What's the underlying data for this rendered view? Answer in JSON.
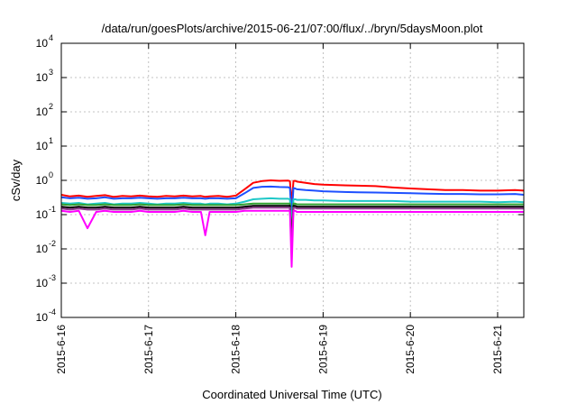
{
  "chart_data": {
    "type": "line",
    "title": "/data/run/goesPlots/archive/2015-06-21/07:00/flux/../bryn/5daysMoon.plot",
    "xlabel": "Coordinated Universal Time (UTC)",
    "ylabel": "cSv/day",
    "yscale": "log",
    "ylim": [
      0.0001,
      10000
    ],
    "xlim_days": [
      0.0,
      5.3
    ],
    "grid": true,
    "y_ticks": [
      {
        "value": 0.0001,
        "base": "10",
        "exp": "-4"
      },
      {
        "value": 0.001,
        "base": "10",
        "exp": "-3"
      },
      {
        "value": 0.01,
        "base": "10",
        "exp": "-2"
      },
      {
        "value": 0.1,
        "base": "10",
        "exp": "-1"
      },
      {
        "value": 1,
        "base": "10",
        "exp": "0"
      },
      {
        "value": 10,
        "base": "10",
        "exp": "1"
      },
      {
        "value": 100,
        "base": "10",
        "exp": "2"
      },
      {
        "value": 1000,
        "base": "10",
        "exp": "3"
      },
      {
        "value": 10000,
        "base": "10",
        "exp": "4"
      }
    ],
    "x_ticks": [
      {
        "day": 0,
        "label": "2015-6-16"
      },
      {
        "day": 1,
        "label": "2015-6-17"
      },
      {
        "day": 2,
        "label": "2015-6-18"
      },
      {
        "day": 3,
        "label": "2015-6-19"
      },
      {
        "day": 4,
        "label": "2015-6-20"
      },
      {
        "day": 5,
        "label": "2015-6-21"
      }
    ],
    "x": [
      0.0,
      0.1,
      0.2,
      0.3,
      0.4,
      0.5,
      0.6,
      0.7,
      0.8,
      0.9,
      1.0,
      1.1,
      1.2,
      1.3,
      1.4,
      1.5,
      1.6,
      1.65,
      1.7,
      1.8,
      1.9,
      2.0,
      2.1,
      2.2,
      2.3,
      2.4,
      2.5,
      2.6,
      2.62,
      2.64,
      2.66,
      2.68,
      2.7,
      2.8,
      2.9,
      3.0,
      3.2,
      3.4,
      3.6,
      3.8,
      4.0,
      4.2,
      4.4,
      4.6,
      4.8,
      5.0,
      5.2,
      5.3
    ],
    "series": [
      {
        "color": "#ff0000",
        "values": [
          0.38,
          0.34,
          0.36,
          0.33,
          0.35,
          0.37,
          0.33,
          0.35,
          0.34,
          0.36,
          0.34,
          0.33,
          0.35,
          0.34,
          0.36,
          0.34,
          0.35,
          0.33,
          0.34,
          0.35,
          0.33,
          0.36,
          0.55,
          0.85,
          0.95,
          1.0,
          0.97,
          0.98,
          0.95,
          0.2,
          0.95,
          0.97,
          0.92,
          0.85,
          0.78,
          0.75,
          0.72,
          0.7,
          0.68,
          0.62,
          0.58,
          0.55,
          0.52,
          0.52,
          0.5,
          0.5,
          0.52,
          0.5
        ]
      },
      {
        "color": "#1e50ff",
        "values": [
          0.32,
          0.3,
          0.31,
          0.29,
          0.3,
          0.32,
          0.29,
          0.3,
          0.3,
          0.31,
          0.3,
          0.29,
          0.3,
          0.3,
          0.31,
          0.3,
          0.3,
          0.29,
          0.3,
          0.3,
          0.29,
          0.3,
          0.42,
          0.6,
          0.65,
          0.66,
          0.64,
          0.63,
          0.6,
          0.09,
          0.6,
          0.58,
          0.55,
          0.52,
          0.5,
          0.48,
          0.46,
          0.45,
          0.44,
          0.43,
          0.42,
          0.41,
          0.4,
          0.4,
          0.39,
          0.39,
          0.4,
          0.38
        ]
      },
      {
        "color": "#20c8c8",
        "values": [
          0.22,
          0.21,
          0.22,
          0.2,
          0.21,
          0.22,
          0.2,
          0.21,
          0.21,
          0.22,
          0.21,
          0.2,
          0.21,
          0.21,
          0.22,
          0.21,
          0.21,
          0.2,
          0.21,
          0.21,
          0.2,
          0.21,
          0.24,
          0.28,
          0.29,
          0.3,
          0.29,
          0.29,
          0.28,
          0.05,
          0.28,
          0.28,
          0.27,
          0.27,
          0.26,
          0.26,
          0.25,
          0.25,
          0.25,
          0.25,
          0.24,
          0.24,
          0.24,
          0.24,
          0.24,
          0.23,
          0.24,
          0.23
        ]
      },
      {
        "color": "#30a030",
        "values": [
          0.2,
          0.19,
          0.2,
          0.19,
          0.19,
          0.2,
          0.19,
          0.19,
          0.19,
          0.2,
          0.19,
          0.19,
          0.19,
          0.19,
          0.2,
          0.19,
          0.19,
          0.19,
          0.19,
          0.19,
          0.19,
          0.19,
          0.2,
          0.21,
          0.21,
          0.21,
          0.21,
          0.21,
          0.21,
          0.02,
          0.21,
          0.21,
          0.2,
          0.2,
          0.2,
          0.2,
          0.2,
          0.2,
          0.2,
          0.2,
          0.2,
          0.2,
          0.2,
          0.2,
          0.2,
          0.2,
          0.2,
          0.2
        ]
      },
      {
        "color": "#000000",
        "values": [
          0.17,
          0.16,
          0.17,
          0.16,
          0.16,
          0.17,
          0.16,
          0.16,
          0.16,
          0.17,
          0.16,
          0.16,
          0.16,
          0.16,
          0.17,
          0.16,
          0.16,
          0.16,
          0.16,
          0.16,
          0.16,
          0.16,
          0.17,
          0.18,
          0.18,
          0.18,
          0.18,
          0.18,
          0.18,
          0.01,
          0.18,
          0.18,
          0.17,
          0.17,
          0.17,
          0.17,
          0.17,
          0.17,
          0.17,
          0.17,
          0.17,
          0.17,
          0.17,
          0.17,
          0.17,
          0.17,
          0.17,
          0.17
        ]
      },
      {
        "color": "#8a3a8a",
        "values": [
          0.15,
          0.14,
          0.15,
          0.14,
          0.14,
          0.15,
          0.14,
          0.14,
          0.14,
          0.15,
          0.14,
          0.14,
          0.14,
          0.14,
          0.15,
          0.14,
          0.14,
          0.14,
          0.14,
          0.14,
          0.14,
          0.14,
          0.15,
          0.16,
          0.16,
          0.16,
          0.16,
          0.16,
          0.16,
          0.008,
          0.16,
          0.16,
          0.15,
          0.15,
          0.15,
          0.15,
          0.15,
          0.15,
          0.15,
          0.15,
          0.15,
          0.15,
          0.15,
          0.15,
          0.15,
          0.15,
          0.15,
          0.15
        ]
      },
      {
        "color": "#ff00ff",
        "values": [
          0.13,
          0.12,
          0.13,
          0.04,
          0.12,
          0.13,
          0.12,
          0.12,
          0.12,
          0.13,
          0.12,
          0.12,
          0.12,
          0.12,
          0.13,
          0.12,
          0.12,
          0.025,
          0.12,
          0.12,
          0.12,
          0.12,
          0.13,
          0.13,
          0.13,
          0.13,
          0.13,
          0.13,
          0.13,
          0.003,
          0.13,
          0.13,
          0.12,
          0.12,
          0.12,
          0.12,
          0.12,
          0.12,
          0.12,
          0.12,
          0.12,
          0.12,
          0.12,
          0.12,
          0.12,
          0.12,
          0.12,
          0.12
        ]
      }
    ]
  }
}
